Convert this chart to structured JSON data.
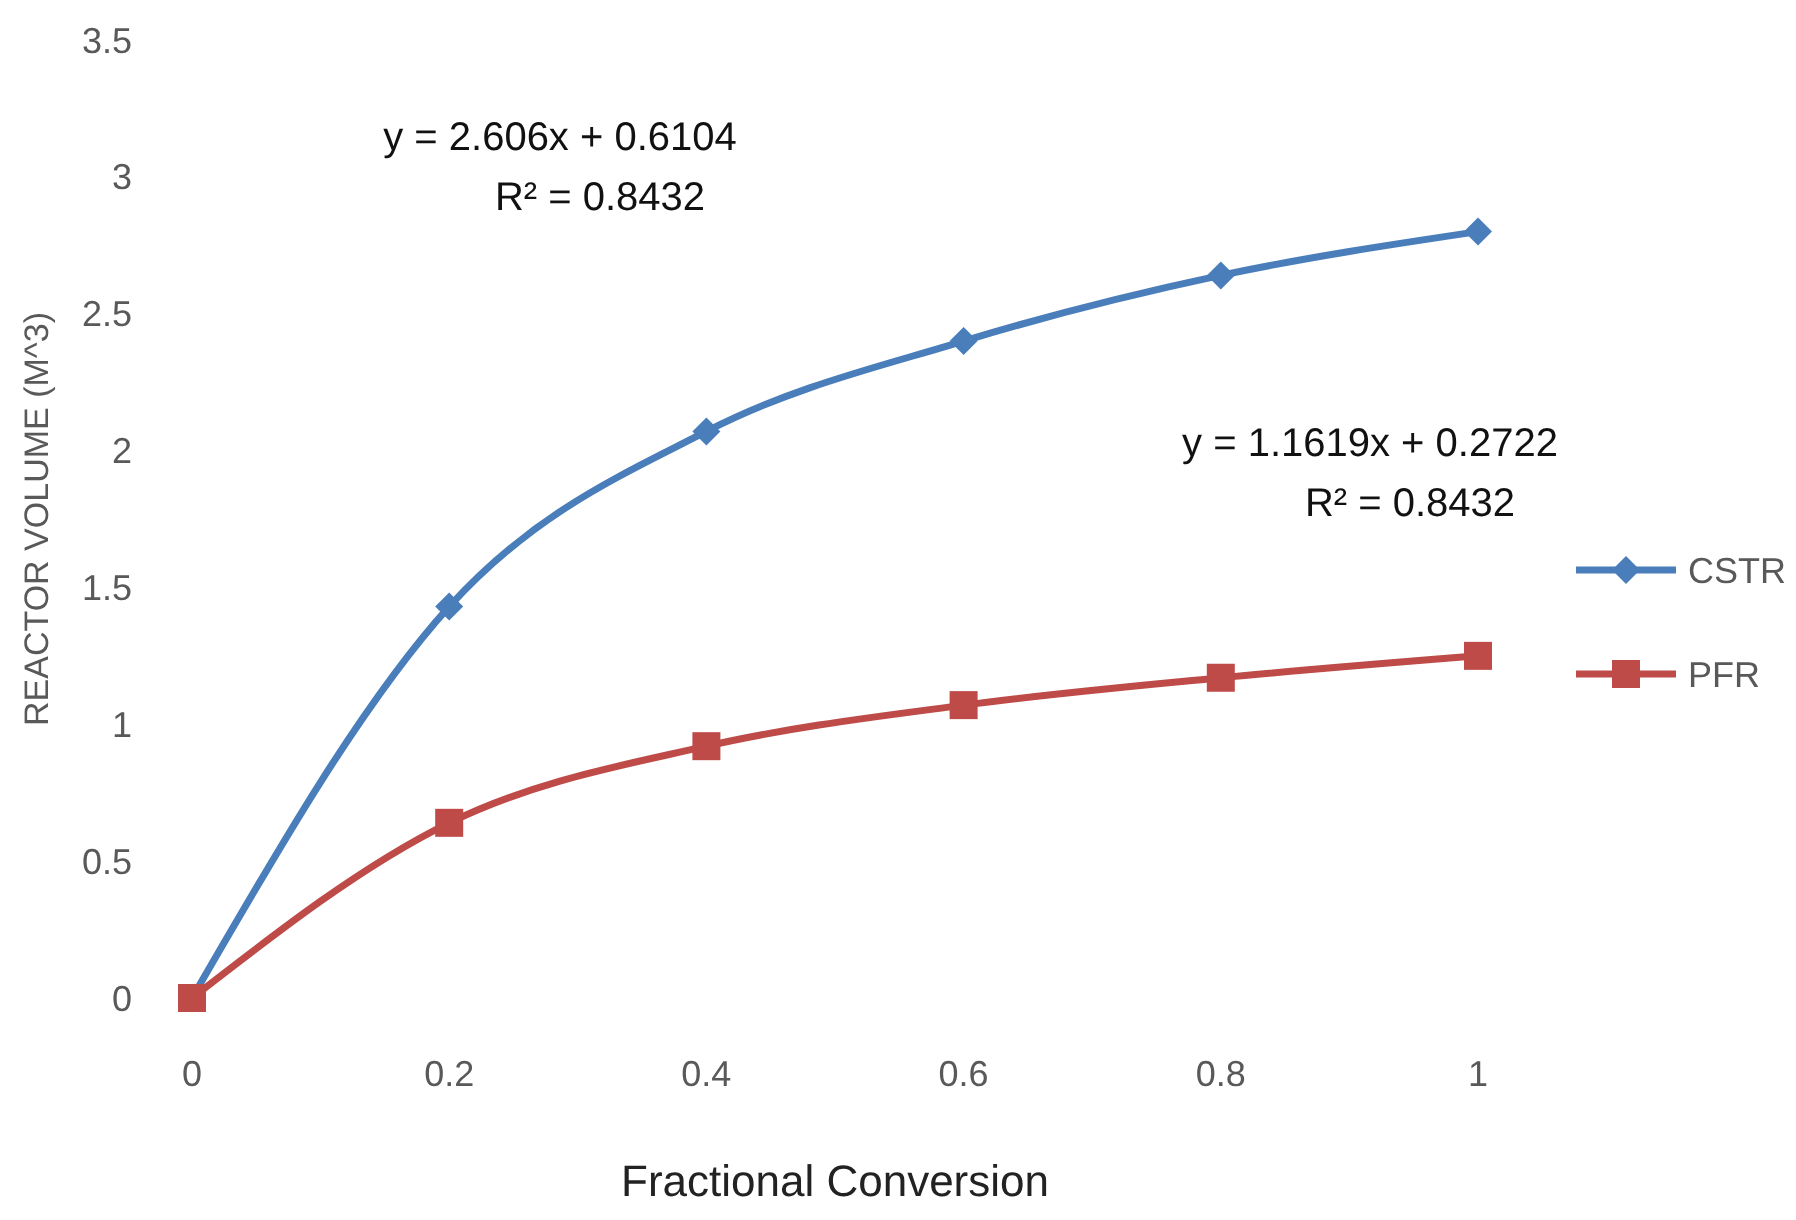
{
  "chart_data": {
    "type": "line",
    "xlabel": "Fractional Conversion",
    "ylabel": "REACTOR VOLUME (M^3)",
    "x": [
      0,
      0.2,
      0.4,
      0.6,
      0.8,
      1
    ],
    "series": [
      {
        "name": "CSTR",
        "color": "#4a7ebb",
        "marker": "diamond",
        "values": [
          0,
          1.43,
          2.07,
          2.4,
          2.64,
          2.8
        ]
      },
      {
        "name": "PFR",
        "color": "#be4b48",
        "marker": "square",
        "values": [
          0,
          0.64,
          0.92,
          1.07,
          1.17,
          1.25
        ]
      }
    ],
    "xlim": [
      0,
      1
    ],
    "xticks": [
      0,
      0.2,
      0.4,
      0.6,
      0.8,
      1
    ],
    "ylim": [
      0,
      3.5
    ],
    "yticks": [
      0,
      0.5,
      1,
      1.5,
      2,
      2.5,
      3,
      3.5
    ],
    "grid": false,
    "legend": "right",
    "line_style": "solid",
    "annotations": [
      "y = 2.606x + 0.6104\nR² = 0.8432",
      "y = 1.1619x + 0.2722\nR² = 0.8432"
    ]
  }
}
